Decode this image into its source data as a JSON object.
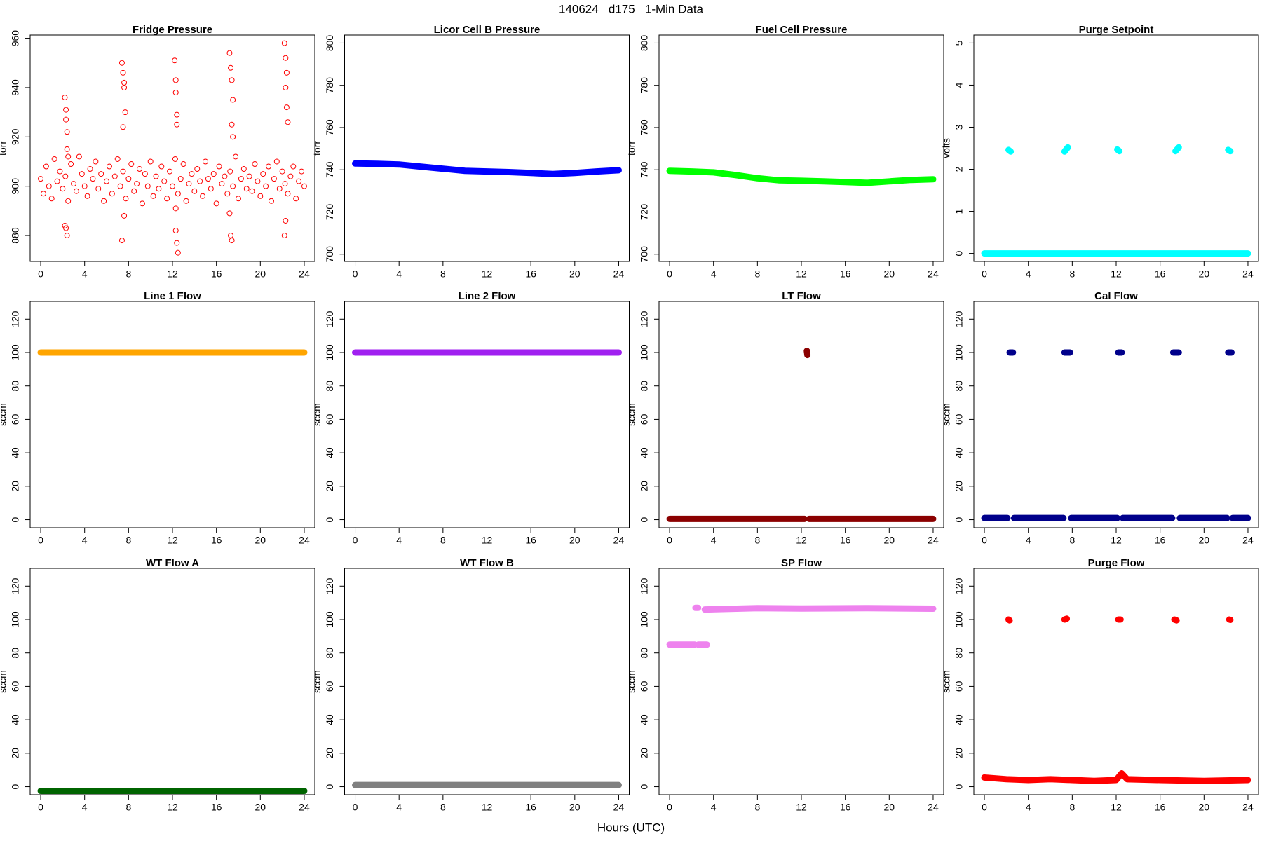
{
  "title": "140624   d175   1-Min Data",
  "xlabel": "Hours (UTC)",
  "chart_data": [
    {
      "type": "scatter",
      "title": "Fridge Pressure",
      "ylabel": "torr",
      "color": "#ff0000",
      "x": [
        0,
        0.25,
        0.5,
        0.75,
        1,
        1.25,
        1.5,
        1.75,
        2,
        2.25,
        2.5,
        2.75,
        3,
        3.25,
        3.5,
        3.75,
        4,
        4.25,
        4.5,
        4.75,
        5,
        5.25,
        5.5,
        5.75,
        6,
        6.25,
        6.5,
        6.75,
        7,
        7.25,
        7.5,
        7.75,
        8,
        8.25,
        8.5,
        8.75,
        9,
        9.25,
        9.5,
        9.75,
        10,
        10.25,
        10.5,
        10.75,
        11,
        11.25,
        11.5,
        11.75,
        12,
        12.25,
        12.5,
        12.75,
        13,
        13.25,
        13.5,
        13.75,
        14,
        14.25,
        14.5,
        14.75,
        15,
        15.25,
        15.5,
        15.75,
        16,
        16.25,
        16.5,
        16.75,
        17,
        17.25,
        17.5,
        17.75,
        18,
        18.25,
        18.5,
        18.75,
        19,
        19.25,
        19.5,
        19.75,
        20,
        20.25,
        20.5,
        20.75,
        21,
        21.25,
        21.5,
        21.75,
        22,
        22.25,
        22.5,
        22.75,
        23,
        23.25,
        23.5,
        23.75,
        24,
        2.2,
        2.3,
        2.3,
        2.4,
        2.4,
        2.5,
        2.3,
        2.4,
        2.2,
        7.4,
        7.5,
        7.6,
        7.6,
        7.7,
        7.5,
        7.6,
        7.4,
        12.2,
        12.3,
        12.3,
        12.4,
        12.4,
        12.3,
        12.4,
        12.5,
        12.3,
        17.2,
        17.3,
        17.4,
        17.5,
        17.4,
        17.5,
        17.3,
        17.4,
        17.2,
        22.2,
        22.3,
        22.4,
        22.3,
        22.4,
        22.5,
        22.3,
        22.2
      ],
      "values": [
        903,
        897,
        908,
        900,
        895,
        911,
        902,
        906,
        899,
        904,
        894,
        909,
        901,
        898,
        912,
        905,
        900,
        896,
        907,
        903,
        910,
        899,
        905,
        894,
        902,
        908,
        897,
        904,
        911,
        900,
        906,
        895,
        903,
        909,
        898,
        901,
        907,
        893,
        905,
        900,
        910,
        896,
        904,
        899,
        908,
        902,
        895,
        906,
        900,
        911,
        897,
        903,
        909,
        894,
        901,
        905,
        898,
        907,
        902,
        896,
        910,
        903,
        899,
        905,
        893,
        908,
        901,
        904,
        897,
        906,
        900,
        912,
        895,
        903,
        907,
        899,
        904,
        898,
        909,
        902,
        896,
        905,
        900,
        908,
        894,
        903,
        910,
        899,
        906,
        901,
        897,
        904,
        908,
        895,
        902,
        906,
        900,
        936,
        931,
        927,
        922,
        915,
        912,
        883,
        880,
        884,
        950,
        946,
        942,
        940,
        930,
        924,
        888,
        878,
        951,
        943,
        938,
        929,
        925,
        891,
        877,
        873,
        882,
        954,
        948,
        943,
        935,
        925,
        920,
        880,
        878,
        889,
        958,
        952,
        946,
        940,
        932,
        926,
        886,
        880
      ],
      "xlim": [
        -0.96,
        24.96
      ],
      "xticks": [
        0,
        4,
        8,
        12,
        16,
        20,
        24
      ],
      "ylim": [
        869.5,
        961.3
      ],
      "yticks": [
        880,
        900,
        920,
        940,
        960
      ]
    },
    {
      "type": "line",
      "title": "Licor Cell B Pressure",
      "ylabel": "torr",
      "color": "#0000ff",
      "x": [
        0,
        2,
        4,
        6,
        8,
        10,
        12,
        14,
        16,
        18,
        20,
        22,
        24
      ],
      "values": [
        743,
        742.8,
        742.5,
        741.5,
        740.5,
        739.5,
        739.2,
        738.9,
        738.5,
        738,
        738.5,
        739.2,
        739.8
      ],
      "xlim": [
        -0.96,
        24.96
      ],
      "xticks": [
        0,
        4,
        8,
        12,
        16,
        20,
        24
      ],
      "ylim": [
        696.6,
        803.8
      ],
      "yticks": [
        700,
        720,
        740,
        760,
        780,
        800
      ]
    },
    {
      "type": "line",
      "title": "Fuel Cell Pressure",
      "ylabel": "torr",
      "color": "#00ff00",
      "x": [
        0,
        2,
        4,
        6,
        8,
        10,
        12,
        14,
        16,
        18,
        20,
        22,
        24
      ],
      "values": [
        739.5,
        739.2,
        738.8,
        737.5,
        736,
        735,
        734.8,
        734.5,
        734.2,
        733.8,
        734.5,
        735.2,
        735.5
      ],
      "xlim": [
        -0.96,
        24.96
      ],
      "xticks": [
        0,
        4,
        8,
        12,
        16,
        20,
        24
      ],
      "ylim": [
        696.6,
        803.8
      ],
      "yticks": [
        700,
        720,
        740,
        760,
        780,
        800
      ]
    },
    {
      "type": "line",
      "title": "Purge Setpoint",
      "ylabel": "volts",
      "color": "#00ffff",
      "x": [
        0,
        24,
        24,
        2.2,
        2.4,
        2.4,
        7.3,
        7.6,
        7.6,
        12.1,
        12.3,
        12.3,
        17.4,
        17.7,
        17.7,
        22.2,
        22.4
      ],
      "values": [
        0,
        0,
        null,
        2.46,
        2.42,
        null,
        2.42,
        2.52,
        null,
        2.47,
        2.43,
        null,
        2.43,
        2.52,
        null,
        2.46,
        2.43
      ],
      "xlim": [
        -0.96,
        24.96
      ],
      "xticks": [
        0,
        4,
        8,
        12,
        16,
        20,
        24
      ],
      "ylim": [
        -0.19,
        5.19
      ],
      "yticks": [
        0,
        1,
        2,
        3,
        4,
        5
      ]
    },
    {
      "type": "line",
      "title": "Line 1 Flow",
      "ylabel": "sccm",
      "color": "#ffa500",
      "x": [
        0,
        24
      ],
      "values": [
        100,
        100
      ],
      "xlim": [
        -0.96,
        24.96
      ],
      "xticks": [
        0,
        4,
        8,
        12,
        16,
        20,
        24
      ],
      "ylim": [
        -4.8,
        130.6
      ],
      "yticks": [
        0,
        20,
        40,
        60,
        80,
        100,
        120
      ]
    },
    {
      "type": "line",
      "title": "Line 2 Flow",
      "ylabel": "sccm",
      "color": "#a020f0",
      "x": [
        0,
        24
      ],
      "values": [
        100,
        100
      ],
      "xlim": [
        -0.96,
        24.96
      ],
      "xticks": [
        0,
        4,
        8,
        12,
        16,
        20,
        24
      ],
      "ylim": [
        -4.8,
        130.6
      ],
      "yticks": [
        0,
        20,
        40,
        60,
        80,
        100,
        120
      ]
    },
    {
      "type": "line",
      "title": "LT Flow",
      "ylabel": "sccm",
      "color": "#8b0000",
      "x": [
        0,
        12.3,
        12.3,
        12.5,
        12.55,
        12.55,
        12.7,
        24
      ],
      "values": [
        0.5,
        0.5,
        null,
        101,
        98.5,
        null,
        0.5,
        0.5
      ],
      "xlim": [
        -0.96,
        24.96
      ],
      "xticks": [
        0,
        4,
        8,
        12,
        16,
        20,
        24
      ],
      "ylim": [
        -4.8,
        130.6
      ],
      "yticks": [
        0,
        20,
        40,
        60,
        80,
        100,
        120
      ]
    },
    {
      "type": "line",
      "title": "Cal Flow",
      "ylabel": "sccm",
      "color": "#00008b",
      "x": [
        0,
        2.1,
        2.1,
        2.3,
        2.6,
        2.6,
        2.7,
        7.2,
        7.2,
        7.3,
        7.8,
        7.8,
        7.9,
        12.1,
        12.1,
        12.2,
        12.5,
        12.5,
        12.6,
        17.1,
        17.1,
        17.2,
        17.7,
        17.7,
        17.8,
        22.1,
        22.1,
        22.2,
        22.5,
        22.5,
        22.6,
        24
      ],
      "values": [
        1,
        1,
        null,
        100,
        100,
        null,
        1,
        1,
        null,
        100,
        100,
        null,
        1,
        1,
        null,
        100,
        100,
        null,
        1,
        1,
        null,
        100,
        100,
        null,
        1,
        1,
        null,
        100,
        100,
        null,
        1,
        1
      ],
      "xlim": [
        -0.96,
        24.96
      ],
      "xticks": [
        0,
        4,
        8,
        12,
        16,
        20,
        24
      ],
      "ylim": [
        -4.8,
        130.6
      ],
      "yticks": [
        0,
        20,
        40,
        60,
        80,
        100,
        120
      ]
    },
    {
      "type": "line",
      "title": "WT Flow A",
      "ylabel": "sccm",
      "color": "#006400",
      "x": [
        0,
        24
      ],
      "values": [
        -2.5,
        -2.5
      ],
      "xlim": [
        -0.96,
        24.96
      ],
      "xticks": [
        0,
        4,
        8,
        12,
        16,
        20,
        24
      ],
      "ylim": [
        -4.8,
        130.6
      ],
      "yticks": [
        0,
        20,
        40,
        60,
        80,
        100,
        120
      ]
    },
    {
      "type": "line",
      "title": "WT Flow B",
      "ylabel": "sccm",
      "color": "#808080",
      "x": [
        0,
        24
      ],
      "values": [
        1,
        1
      ],
      "xlim": [
        -0.96,
        24.96
      ],
      "xticks": [
        0,
        4,
        8,
        12,
        16,
        20,
        24
      ],
      "ylim": [
        -4.8,
        130.6
      ],
      "yticks": [
        0,
        20,
        40,
        60,
        80,
        100,
        120
      ]
    },
    {
      "type": "line",
      "title": "SP Flow",
      "ylabel": "sccm",
      "color": "#ee82ee",
      "x": [
        0,
        2.3,
        2.3,
        2.35,
        2.6,
        2.6,
        2.6,
        3.4,
        3.4,
        3.2,
        8,
        12,
        18,
        24
      ],
      "values": [
        85,
        85,
        null,
        107,
        107,
        null,
        85,
        85,
        null,
        106,
        106.8,
        106.6,
        106.8,
        106.5
      ],
      "xlim": [
        -0.96,
        24.96
      ],
      "xticks": [
        0,
        4,
        8,
        12,
        16,
        20,
        24
      ],
      "ylim": [
        -4.8,
        130.6
      ],
      "yticks": [
        0,
        20,
        40,
        60,
        80,
        100,
        120
      ]
    },
    {
      "type": "line",
      "title": "Purge Flow",
      "ylabel": "sccm",
      "color": "#ff0000",
      "x": [
        0,
        2,
        4,
        6,
        8,
        10,
        12,
        12.5,
        13,
        16,
        20,
        24,
        24,
        2.2,
        2.3,
        2.3,
        7.3,
        7.5,
        7.5,
        12.2,
        12.4,
        12.4,
        17.3,
        17.5,
        17.5,
        22.3,
        22.4
      ],
      "values": [
        5.5,
        4.5,
        4,
        4.5,
        4,
        3.5,
        4,
        8,
        4.5,
        4,
        3.5,
        4,
        null,
        100,
        99.5,
        null,
        100,
        100.5,
        null,
        100,
        100,
        null,
        100,
        99.5,
        null,
        100,
        99.8
      ],
      "xlim": [
        -0.96,
        24.96
      ],
      "xticks": [
        0,
        4,
        8,
        12,
        16,
        20,
        24
      ],
      "ylim": [
        -4.8,
        130.6
      ],
      "yticks": [
        0,
        20,
        40,
        60,
        80,
        100,
        120
      ]
    }
  ]
}
